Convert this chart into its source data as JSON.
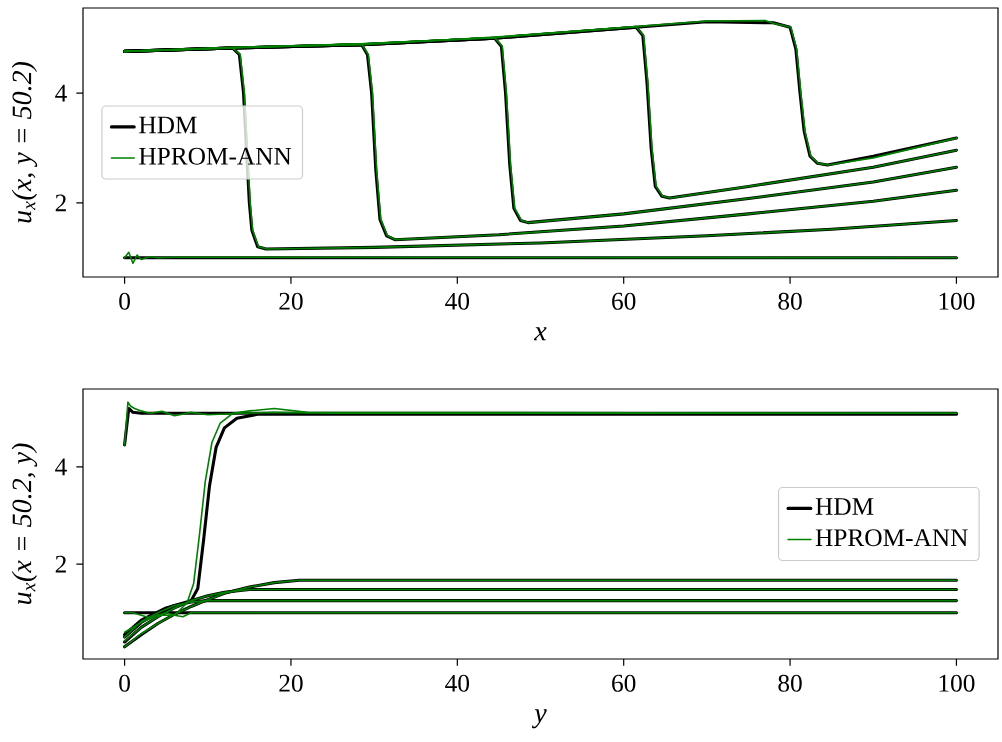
{
  "chart_data": [
    {
      "type": "line",
      "xlabel": "x",
      "ylabel": "*u*$_{x}$(*x*, *y* = 50.2)",
      "xlim": [
        -5,
        105
      ],
      "ylim": [
        0.65,
        5.55
      ],
      "xticks": [
        0,
        20,
        40,
        60,
        80,
        100
      ],
      "yticks": [
        2,
        4
      ],
      "legend": "center left",
      "grid": false,
      "series": [
        {
          "name": "HDM",
          "color": "#000000",
          "x": [
            0,
            100
          ],
          "values": [
            1.0,
            1.0
          ]
        },
        {
          "color": "#000000",
          "x": [
            0,
            13,
            13.8,
            14.3,
            15.0,
            15.3,
            16,
            17,
            30,
            50,
            70,
            85,
            100
          ],
          "values": [
            4.76,
            4.82,
            4.7,
            4.0,
            2.0,
            1.5,
            1.2,
            1.16,
            1.19,
            1.27,
            1.4,
            1.52,
            1.68
          ]
        },
        {
          "color": "#000000",
          "x": [
            0,
            13,
            28.5,
            29.2,
            29.7,
            30.2,
            30.7,
            31.5,
            32.5,
            45,
            60,
            75,
            90,
            100
          ],
          "values": [
            4.76,
            4.82,
            4.88,
            4.7,
            4.0,
            2.6,
            1.7,
            1.4,
            1.33,
            1.42,
            1.58,
            1.8,
            2.03,
            2.23
          ]
        },
        {
          "color": "#000000",
          "x": [
            0,
            13,
            28.5,
            44.5,
            45.3,
            45.8,
            46.3,
            46.8,
            47.6,
            48.5,
            60,
            75,
            90,
            100
          ],
          "values": [
            4.76,
            4.82,
            4.88,
            5.0,
            4.85,
            4.0,
            2.7,
            1.9,
            1.68,
            1.64,
            1.8,
            2.08,
            2.38,
            2.65
          ]
        },
        {
          "color": "#000000",
          "x": [
            0,
            13,
            28.5,
            44.5,
            61.5,
            62.3,
            62.8,
            63.3,
            63.8,
            64.6,
            65.5,
            75,
            90,
            100
          ],
          "values": [
            4.76,
            4.82,
            4.88,
            5.0,
            5.2,
            5.05,
            4.2,
            3.0,
            2.3,
            2.12,
            2.09,
            2.3,
            2.65,
            2.96
          ]
        },
        {
          "color": "#000000",
          "x": [
            0,
            13,
            28.5,
            44.5,
            61.5,
            70,
            78,
            80,
            80.7,
            81.2,
            81.7,
            82.4,
            83.3,
            84.5,
            90,
            100
          ],
          "values": [
            4.76,
            4.82,
            4.88,
            5.0,
            5.2,
            5.3,
            5.28,
            5.2,
            4.8,
            4.0,
            3.3,
            2.85,
            2.72,
            2.69,
            2.85,
            3.18
          ]
        },
        {
          "name": "HPROM-ANN",
          "color": "#008000",
          "x": [
            0,
            0.5,
            1,
            1.5,
            2,
            3,
            4,
            6,
            100
          ],
          "values": [
            1.0,
            1.1,
            0.9,
            1.05,
            0.97,
            1.02,
            1.0,
            1.01,
            1.0
          ]
        },
        {
          "color": "#008000",
          "x": [
            0,
            13,
            13.9,
            14.4,
            15.1,
            15.4,
            16.1,
            17.1,
            30,
            50,
            70,
            85,
            100
          ],
          "values": [
            4.76,
            4.82,
            4.7,
            4.0,
            2.0,
            1.5,
            1.2,
            1.16,
            1.19,
            1.27,
            1.4,
            1.52,
            1.68
          ]
        },
        {
          "color": "#008000",
          "x": [
            0,
            13,
            28.5,
            29.3,
            29.8,
            30.3,
            30.8,
            31.6,
            32.6,
            45,
            60,
            75,
            90,
            100
          ],
          "values": [
            4.76,
            4.83,
            4.89,
            4.7,
            4.0,
            2.6,
            1.7,
            1.4,
            1.33,
            1.42,
            1.58,
            1.8,
            2.03,
            2.23
          ]
        },
        {
          "color": "#008000",
          "x": [
            0,
            13,
            28.5,
            44.5,
            45.4,
            45.9,
            46.4,
            46.9,
            47.7,
            48.6,
            60,
            75,
            90,
            100
          ],
          "values": [
            4.76,
            4.82,
            4.9,
            5.01,
            4.85,
            4.0,
            2.7,
            1.9,
            1.68,
            1.64,
            1.8,
            2.08,
            2.38,
            2.65
          ]
        },
        {
          "color": "#008000",
          "x": [
            0,
            13,
            28.5,
            44.5,
            61.5,
            62.4,
            62.9,
            63.4,
            63.9,
            64.7,
            65.6,
            75,
            90,
            100
          ],
          "values": [
            4.76,
            4.83,
            4.88,
            5.02,
            5.21,
            5.05,
            4.2,
            3.0,
            2.3,
            2.12,
            2.09,
            2.3,
            2.65,
            2.96
          ]
        },
        {
          "color": "#008000",
          "x": [
            0,
            13,
            28.5,
            44.5,
            61.5,
            70,
            77,
            78,
            80.1,
            80.8,
            81.3,
            81.8,
            82.5,
            83.4,
            84.6,
            90,
            100
          ],
          "values": [
            4.76,
            4.83,
            4.9,
            5.01,
            5.21,
            5.31,
            5.32,
            5.27,
            5.2,
            4.8,
            4.0,
            3.3,
            2.85,
            2.72,
            2.69,
            2.82,
            3.18
          ]
        }
      ]
    },
    {
      "type": "line",
      "xlabel": "y",
      "ylabel": "*u*$_{x}$(*x* = 50.2, *y*)",
      "xlim": [
        -5,
        105
      ],
      "ylim": [
        0.05,
        5.6
      ],
      "xticks": [
        0,
        20,
        40,
        60,
        80,
        100
      ],
      "yticks": [
        2,
        4
      ],
      "legend": "center right",
      "grid": false,
      "series": [
        {
          "name": "HDM",
          "color": "#000000",
          "x": [
            0,
            0.5,
            1,
            2,
            4,
            100
          ],
          "values": [
            4.45,
            5.2,
            5.12,
            5.1,
            5.1,
            5.1
          ]
        },
        {
          "color": "#000000",
          "x": [
            0,
            2,
            5,
            8,
            8.8,
            9.5,
            10.2,
            11,
            12,
            13.5,
            16,
            100
          ],
          "values": [
            0.55,
            0.85,
            1.1,
            1.25,
            1.5,
            2.5,
            3.6,
            4.4,
            4.8,
            5.0,
            5.08,
            5.08
          ]
        },
        {
          "color": "#000000",
          "x": [
            0,
            100
          ],
          "values": [
            1.0,
            1.0
          ]
        },
        {
          "color": "#000000",
          "x": [
            0,
            2,
            4,
            6,
            8,
            10,
            100
          ],
          "values": [
            0.5,
            0.8,
            1.0,
            1.15,
            1.22,
            1.25,
            1.25
          ]
        },
        {
          "color": "#000000",
          "x": [
            0,
            2,
            4,
            6,
            8,
            10,
            12,
            15,
            100
          ],
          "values": [
            0.4,
            0.7,
            0.92,
            1.1,
            1.25,
            1.35,
            1.42,
            1.48,
            1.48
          ]
        },
        {
          "color": "#000000",
          "x": [
            0,
            2,
            4,
            6,
            8,
            10,
            12,
            15,
            18,
            21,
            100
          ],
          "values": [
            0.3,
            0.55,
            0.78,
            0.97,
            1.13,
            1.27,
            1.4,
            1.53,
            1.62,
            1.67,
            1.67
          ]
        },
        {
          "name": "HPROM-ANN",
          "color": "#008000",
          "x": [
            0,
            0.4,
            0.7,
            1.2,
            2,
            3,
            4.5,
            6,
            8,
            10,
            14,
            18,
            25,
            100
          ],
          "values": [
            4.45,
            5.33,
            5.25,
            5.2,
            5.15,
            5.1,
            5.14,
            5.05,
            5.12,
            5.07,
            5.1,
            5.12,
            5.1,
            5.1
          ]
        },
        {
          "color": "#008000",
          "x": [
            0,
            2,
            4,
            6,
            7.5,
            8.3,
            9,
            9.7,
            10.5,
            11.5,
            13,
            15,
            18,
            22,
            100
          ],
          "values": [
            0.6,
            0.8,
            0.95,
            0.95,
            1.2,
            1.6,
            2.6,
            3.7,
            4.5,
            4.9,
            5.1,
            5.15,
            5.2,
            5.12,
            5.1
          ]
        },
        {
          "color": "#008000",
          "x": [
            0,
            1,
            2,
            3,
            4,
            5,
            6,
            7,
            8,
            100
          ],
          "values": [
            1.0,
            1.0,
            0.95,
            0.9,
            0.95,
            1.0,
            0.95,
            0.92,
            1.0,
            1.0
          ]
        },
        {
          "color": "#008000",
          "x": [
            0,
            2,
            4,
            6,
            8,
            10,
            100
          ],
          "values": [
            0.5,
            0.82,
            1.0,
            1.15,
            1.22,
            1.25,
            1.25
          ]
        },
        {
          "color": "#008000",
          "x": [
            0,
            2,
            4,
            6,
            8,
            10,
            12,
            15,
            100
          ],
          "values": [
            0.42,
            0.7,
            0.92,
            1.1,
            1.25,
            1.35,
            1.42,
            1.48,
            1.48
          ]
        },
        {
          "color": "#008000",
          "x": [
            0,
            2,
            4,
            6,
            8,
            10,
            12,
            15,
            18,
            21,
            100
          ],
          "values": [
            0.3,
            0.57,
            0.78,
            0.97,
            1.13,
            1.27,
            1.4,
            1.53,
            1.62,
            1.67,
            1.67
          ]
        }
      ]
    }
  ]
}
